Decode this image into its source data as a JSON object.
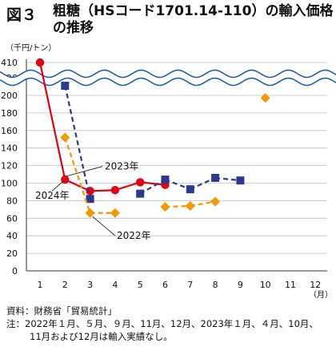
{
  "figure": {
    "number": "図３",
    "title": "粗糖（HSコード1701.14-110）の輸入価格の推移"
  },
  "chart_data": {
    "type": "line",
    "unit_label": "（千円/トン）",
    "x_unit_label": "（月）",
    "categories": [
      "1",
      "2",
      "3",
      "4",
      "5",
      "6",
      "7",
      "8",
      "9",
      "10",
      "11",
      "12"
    ],
    "y_ticks_lower": [
      "0",
      "20",
      "40",
      "60",
      "80",
      "100",
      "120",
      "140",
      "160",
      "180",
      "200",
      "220"
    ],
    "y_tick_upper": "410",
    "axis_break": true,
    "ylim": [
      0,
      225
    ],
    "grid": true,
    "series": [
      {
        "name": "2024年",
        "color": "#e60012",
        "marker": "circle",
        "line": "solid",
        "points": [
          {
            "x": 1,
            "y": 410,
            "above_break": true
          },
          {
            "x": 2,
            "y": 104
          },
          {
            "x": 3,
            "y": 91
          },
          {
            "x": 4,
            "y": 92
          },
          {
            "x": 5,
            "y": 101
          },
          {
            "x": 6,
            "y": 98
          }
        ]
      },
      {
        "name": "2023年",
        "color": "#2b3990",
        "marker": "square",
        "line": "dashed",
        "points": [
          {
            "x": 2,
            "y": 211
          },
          {
            "x": 3,
            "y": 82
          },
          {
            "x": 5,
            "y": 88
          },
          {
            "x": 6,
            "y": 104
          },
          {
            "x": 7,
            "y": 93
          },
          {
            "x": 8,
            "y": 106
          },
          {
            "x": 9,
            "y": 103
          }
        ]
      },
      {
        "name": "2022年",
        "color": "#f39800",
        "marker": "diamond",
        "line": "dashed",
        "points": [
          {
            "x": 2,
            "y": 152
          },
          {
            "x": 3,
            "y": 66
          },
          {
            "x": 4,
            "y": 66
          },
          {
            "x": 6,
            "y": 73
          },
          {
            "x": 7,
            "y": 74
          },
          {
            "x": 8,
            "y": 79
          },
          {
            "x": 10,
            "y": 197
          }
        ]
      }
    ]
  },
  "footer": {
    "source": "資料：財務省「貿易統計」",
    "note_line1": "注：2022年１月、５月、９月、11月、12月、2023年１月、４月、10月、",
    "note_line2": "11月および12月は輸入実績なし。"
  }
}
